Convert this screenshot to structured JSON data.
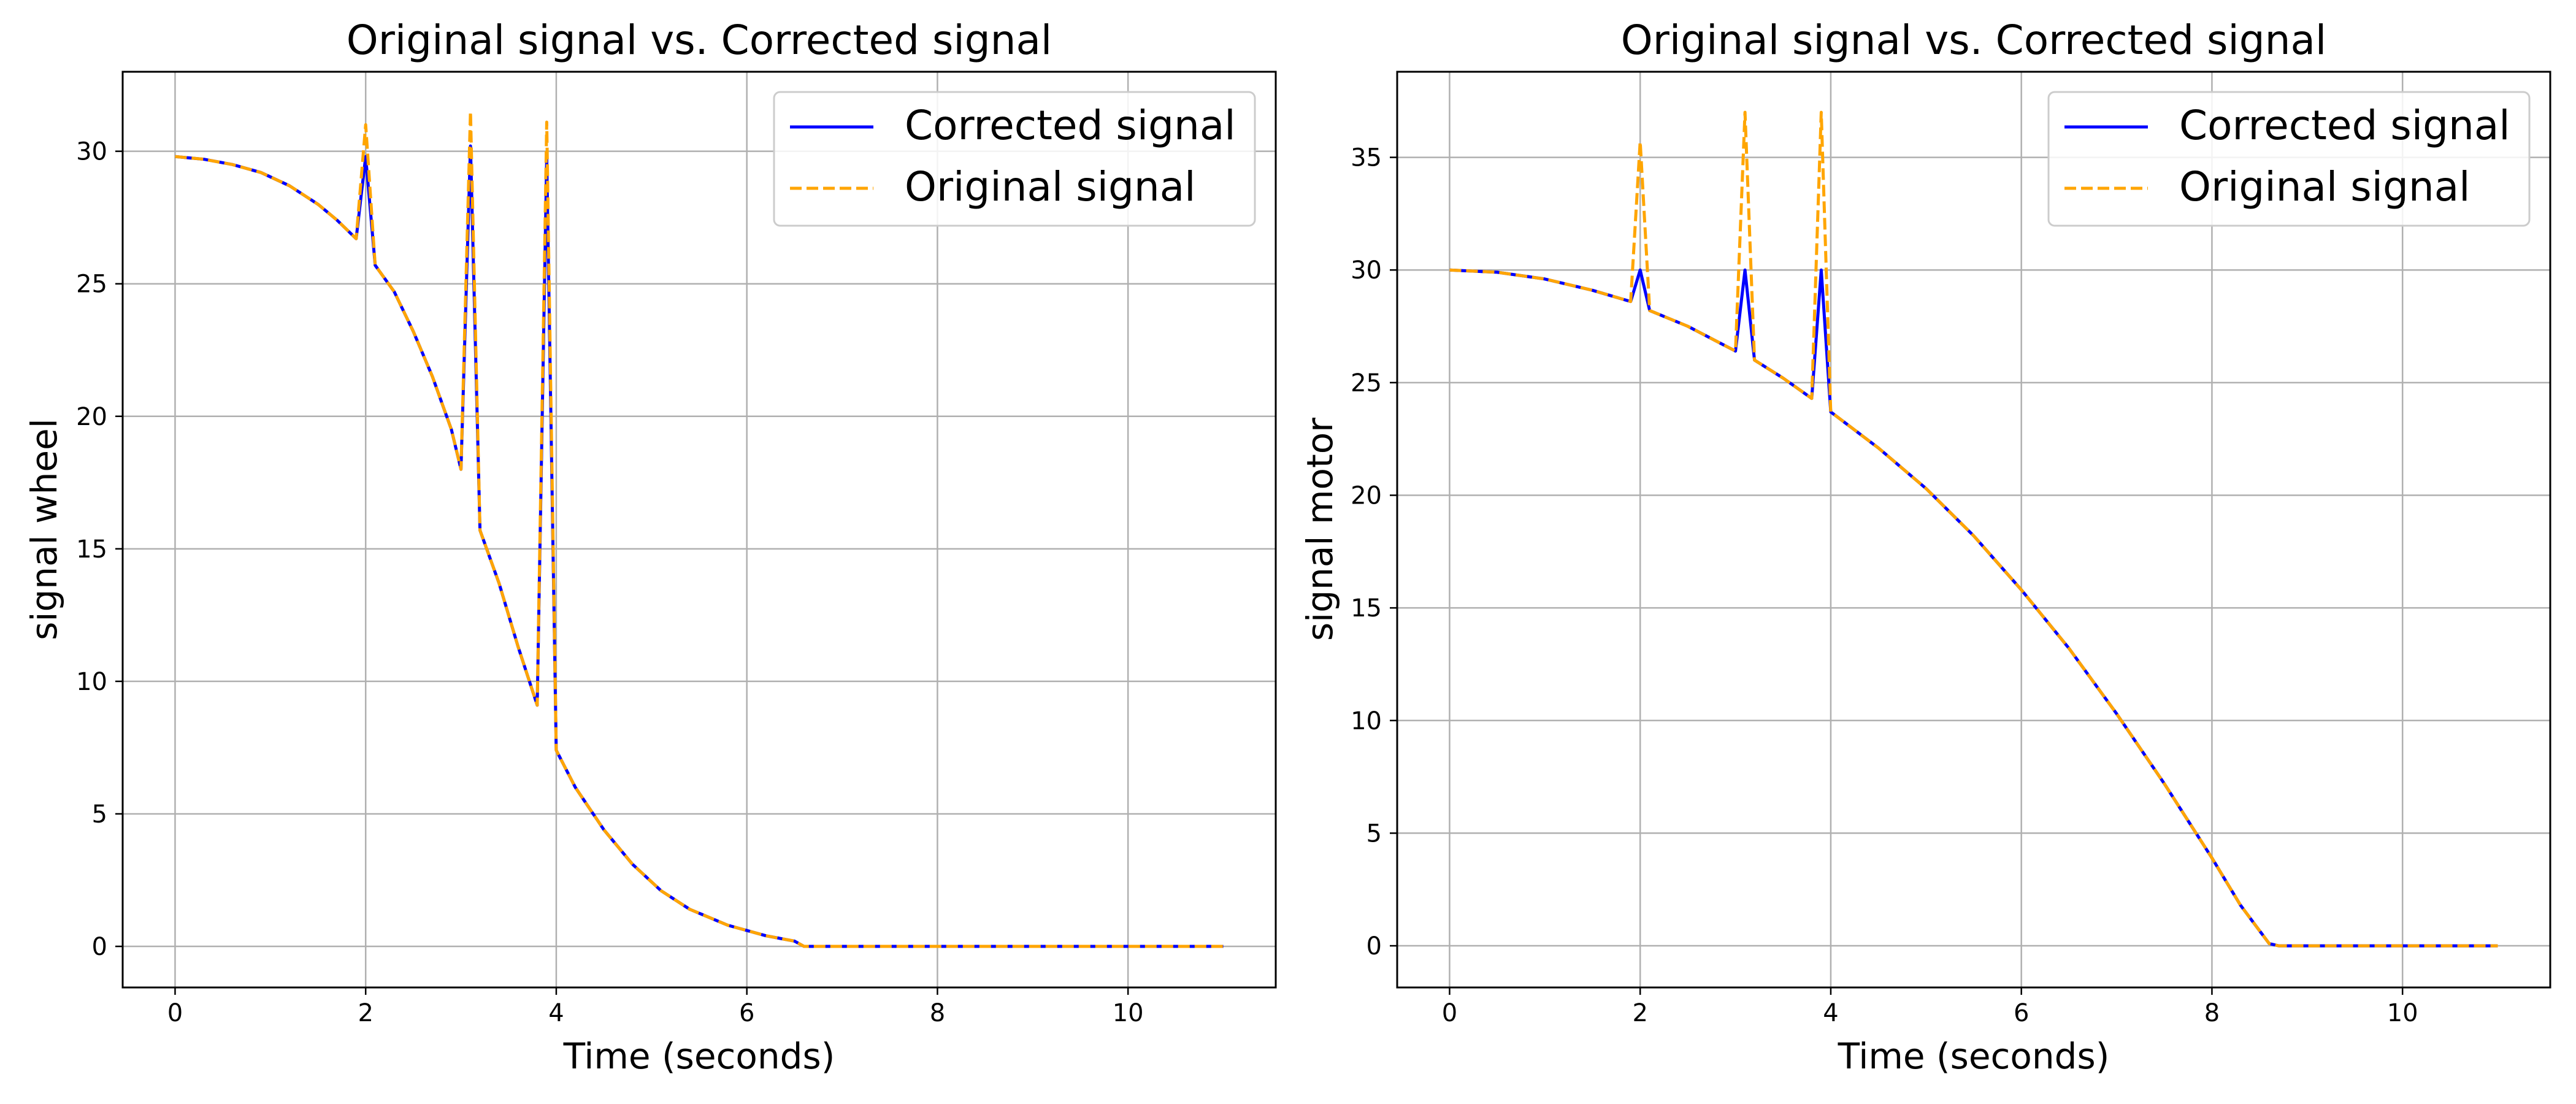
{
  "colors": {
    "corrected": "#0000ff",
    "original": "#ffa500",
    "grid": "#b0b0b0",
    "axes": "#000000"
  },
  "chart_data": [
    {
      "type": "line",
      "title": "Original signal vs. Corrected signal",
      "xlabel": "Time (seconds)",
      "ylabel": "signal wheel",
      "xlim": [
        -0.55,
        11.55
      ],
      "ylim": [
        -1.55,
        33.0
      ],
      "xticks": [
        0,
        2,
        4,
        6,
        8,
        10
      ],
      "yticks": [
        0,
        5,
        10,
        15,
        20,
        25,
        30
      ],
      "grid": true,
      "legend_position": "top-right",
      "series": [
        {
          "name": "Corrected signal",
          "style": "solid",
          "color": "#0000ff",
          "points": [
            [
              0,
              29.8
            ],
            [
              0.3,
              29.7
            ],
            [
              0.6,
              29.5
            ],
            [
              0.9,
              29.2
            ],
            [
              1.2,
              28.7
            ],
            [
              1.5,
              28.0
            ],
            [
              1.7,
              27.4
            ],
            [
              1.9,
              26.7
            ],
            [
              2.0,
              29.8
            ],
            [
              2.1,
              25.7
            ],
            [
              2.3,
              24.7
            ],
            [
              2.5,
              23.2
            ],
            [
              2.7,
              21.5
            ],
            [
              2.9,
              19.5
            ],
            [
              3.0,
              18.0
            ],
            [
              3.1,
              30.2
            ],
            [
              3.2,
              15.7
            ],
            [
              3.4,
              13.7
            ],
            [
              3.6,
              11.3
            ],
            [
              3.8,
              9.1
            ],
            [
              3.9,
              29.8
            ],
            [
              4.0,
              7.4
            ],
            [
              4.2,
              6.0
            ],
            [
              4.5,
              4.4
            ],
            [
              4.8,
              3.1
            ],
            [
              5.1,
              2.1
            ],
            [
              5.4,
              1.4
            ],
            [
              5.8,
              0.8
            ],
            [
              6.2,
              0.4
            ],
            [
              6.5,
              0.2
            ],
            [
              6.6,
              0.0
            ],
            [
              7.0,
              0.0
            ],
            [
              8.0,
              0.0
            ],
            [
              9.0,
              0.0
            ],
            [
              10.0,
              0.0
            ],
            [
              11.0,
              0.0
            ]
          ]
        },
        {
          "name": "Original signal",
          "style": "dashed",
          "color": "#ffa500",
          "points": [
            [
              0,
              29.8
            ],
            [
              0.3,
              29.7
            ],
            [
              0.6,
              29.5
            ],
            [
              0.9,
              29.2
            ],
            [
              1.2,
              28.7
            ],
            [
              1.5,
              28.0
            ],
            [
              1.7,
              27.4
            ],
            [
              1.9,
              26.7
            ],
            [
              2.0,
              31.0
            ],
            [
              2.1,
              25.7
            ],
            [
              2.3,
              24.7
            ],
            [
              2.5,
              23.2
            ],
            [
              2.7,
              21.5
            ],
            [
              2.9,
              19.5
            ],
            [
              3.0,
              18.0
            ],
            [
              3.1,
              31.5
            ],
            [
              3.2,
              15.7
            ],
            [
              3.4,
              13.7
            ],
            [
              3.6,
              11.3
            ],
            [
              3.8,
              9.1
            ],
            [
              3.9,
              31.1
            ],
            [
              4.0,
              7.4
            ],
            [
              4.2,
              6.0
            ],
            [
              4.5,
              4.4
            ],
            [
              4.8,
              3.1
            ],
            [
              5.1,
              2.1
            ],
            [
              5.4,
              1.4
            ],
            [
              5.8,
              0.8
            ],
            [
              6.2,
              0.4
            ],
            [
              6.5,
              0.2
            ],
            [
              6.6,
              0.0
            ],
            [
              7.0,
              0.0
            ],
            [
              8.0,
              0.0
            ],
            [
              9.0,
              0.0
            ],
            [
              10.0,
              0.0
            ],
            [
              11.0,
              0.0
            ]
          ]
        }
      ]
    },
    {
      "type": "line",
      "title": "Original signal vs. Corrected signal",
      "xlabel": "Time (seconds)",
      "ylabel": "signal motor",
      "xlim": [
        -0.55,
        11.55
      ],
      "ylim": [
        -1.85,
        38.8
      ],
      "xticks": [
        0,
        2,
        4,
        6,
        8,
        10
      ],
      "yticks": [
        0,
        5,
        10,
        15,
        20,
        25,
        30,
        35
      ],
      "grid": true,
      "legend_position": "top-right",
      "series": [
        {
          "name": "Corrected signal",
          "style": "solid",
          "color": "#0000ff",
          "points": [
            [
              0,
              30.0
            ],
            [
              0.5,
              29.9
            ],
            [
              1.0,
              29.6
            ],
            [
              1.5,
              29.1
            ],
            [
              1.9,
              28.6
            ],
            [
              2.0,
              30.0
            ],
            [
              2.1,
              28.2
            ],
            [
              2.5,
              27.5
            ],
            [
              3.0,
              26.4
            ],
            [
              3.1,
              30.0
            ],
            [
              3.2,
              26.0
            ],
            [
              3.5,
              25.2
            ],
            [
              3.8,
              24.3
            ],
            [
              3.9,
              30.0
            ],
            [
              4.0,
              23.7
            ],
            [
              4.5,
              22.1
            ],
            [
              5.0,
              20.3
            ],
            [
              5.5,
              18.2
            ],
            [
              6.0,
              15.8
            ],
            [
              6.5,
              13.2
            ],
            [
              7.0,
              10.3
            ],
            [
              7.5,
              7.2
            ],
            [
              8.0,
              3.9
            ],
            [
              8.3,
              1.8
            ],
            [
              8.6,
              0.1
            ],
            [
              8.7,
              0.0
            ],
            [
              9.0,
              0.0
            ],
            [
              10.0,
              0.0
            ],
            [
              11.0,
              0.0
            ]
          ]
        },
        {
          "name": "Original signal",
          "style": "dashed",
          "color": "#ffa500",
          "points": [
            [
              0,
              30.0
            ],
            [
              0.5,
              29.9
            ],
            [
              1.0,
              29.6
            ],
            [
              1.5,
              29.1
            ],
            [
              1.9,
              28.6
            ],
            [
              2.0,
              35.7
            ],
            [
              2.1,
              28.2
            ],
            [
              2.5,
              27.5
            ],
            [
              3.0,
              26.4
            ],
            [
              3.1,
              37.0
            ],
            [
              3.2,
              26.0
            ],
            [
              3.5,
              25.2
            ],
            [
              3.8,
              24.3
            ],
            [
              3.9,
              37.0
            ],
            [
              4.0,
              23.7
            ],
            [
              4.5,
              22.1
            ],
            [
              5.0,
              20.3
            ],
            [
              5.5,
              18.2
            ],
            [
              6.0,
              15.8
            ],
            [
              6.5,
              13.2
            ],
            [
              7.0,
              10.3
            ],
            [
              7.5,
              7.2
            ],
            [
              8.0,
              3.9
            ],
            [
              8.3,
              1.8
            ],
            [
              8.6,
              0.1
            ],
            [
              8.7,
              0.0
            ],
            [
              9.0,
              0.0
            ],
            [
              10.0,
              0.0
            ],
            [
              11.0,
              0.0
            ]
          ]
        }
      ]
    }
  ]
}
